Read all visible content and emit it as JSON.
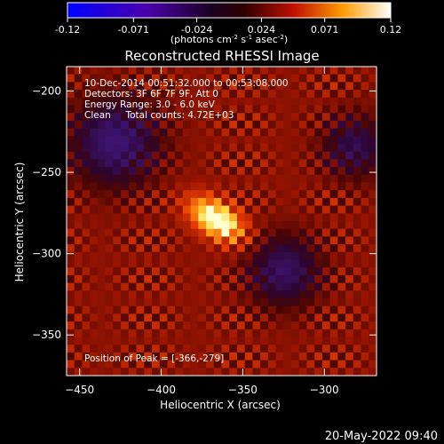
{
  "colorbar": {
    "tick_labels": [
      "-0.12",
      "-0.071",
      "-0.024",
      "0.024",
      "0.071",
      "0.12"
    ],
    "tick_values": [
      -0.12,
      -0.071,
      -0.024,
      0.024,
      0.071,
      0.12
    ],
    "range": [
      -0.12,
      0.12
    ],
    "unit_base": "(photons cm",
    "unit_exp1": "-2",
    "unit_mid": " s",
    "unit_exp2": "-1",
    "unit_mid2": " asec",
    "unit_exp3": "-2",
    "unit_end": ")"
  },
  "chart_data": {
    "type": "heatmap",
    "title": "Reconstructed RHESSI Image",
    "xlabel": "Heliocentric X (arcsec)",
    "ylabel": "Heliocentric Y (arcsec)",
    "xlim": [
      -458,
      -268
    ],
    "ylim": [
      -375,
      -185
    ],
    "x_ticks": [
      -450,
      -400,
      -350,
      -300
    ],
    "y_ticks": [
      -200,
      -250,
      -300,
      -350
    ],
    "x_tick_labels": [
      "−450",
      "−400",
      "−350",
      "−300"
    ],
    "y_tick_labels": [
      "−200",
      "−250",
      "−300",
      "−350"
    ],
    "colormap": "RHESSI red-temperature with blue negative range",
    "peak": [
      -366,
      -279
    ],
    "annotations": [
      "10-Dec-2014 00:51:32.000 to 00:53:08.000",
      "Detectors: 3F 6F 7F 9F, Att 0",
      "Energy Range: 3.0 - 6.0 keV",
      "Clean     Total counts: 4.72E+03"
    ],
    "peak_label": "Position of Peak = [-366,-279]"
  },
  "footer": {
    "timestamp": "20-May-2022 09:40"
  }
}
